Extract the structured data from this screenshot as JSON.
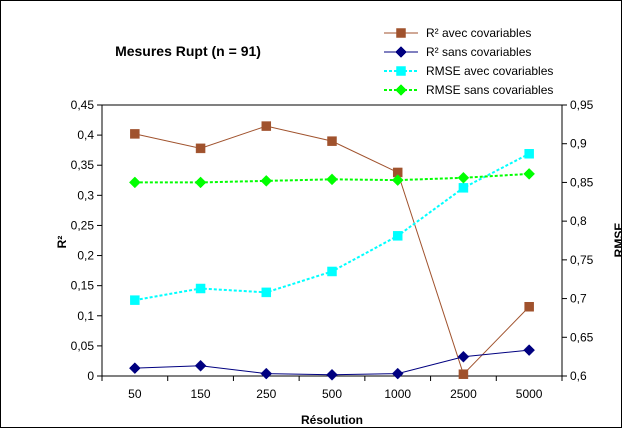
{
  "chart_data": {
    "type": "line",
    "title": "Mesures Rupt (n = 91)",
    "xlabel": "Résolution",
    "ylabel": "R²",
    "y2label": "RMSE",
    "categories": [
      "50",
      "150",
      "250",
      "500",
      "1000",
      "2500",
      "5000"
    ],
    "ylim": [
      0,
      0.45
    ],
    "y2lim": [
      0.6,
      0.95
    ],
    "yticks": [
      "0",
      "0,05",
      "0,1",
      "0,15",
      "0,2",
      "0,25",
      "0,3",
      "0,35",
      "0,4",
      "0,45"
    ],
    "y2ticks": [
      "0,6",
      "0,65",
      "0,7",
      "0,75",
      "0,8",
      "0,85",
      "0,9",
      "0,95"
    ],
    "legend_position": "top-right",
    "grid": false,
    "series": [
      {
        "name": "R² avec covariables",
        "axis": "left",
        "color": "#a0522d",
        "marker": "square",
        "dash": "solid",
        "values": [
          0.402,
          0.378,
          0.415,
          0.39,
          0.338,
          0.003,
          0.115
        ]
      },
      {
        "name": "R² sans covariables",
        "axis": "left",
        "color": "#000080",
        "marker": "diamond",
        "dash": "solid",
        "values": [
          0.013,
          0.017,
          0.004,
          0.002,
          0.004,
          0.032,
          0.043
        ]
      },
      {
        "name": "RMSE avec covariables",
        "axis": "right",
        "color": "#00ffff",
        "marker": "square",
        "dash": "dotted",
        "values": [
          0.698,
          0.713,
          0.708,
          0.735,
          0.781,
          0.843,
          0.887
        ]
      },
      {
        "name": "RMSE sans covariables",
        "axis": "right",
        "color": "#00ff00",
        "marker": "diamond",
        "dash": "dotted",
        "values": [
          0.85,
          0.85,
          0.852,
          0.854,
          0.853,
          0.856,
          0.861
        ]
      }
    ]
  }
}
